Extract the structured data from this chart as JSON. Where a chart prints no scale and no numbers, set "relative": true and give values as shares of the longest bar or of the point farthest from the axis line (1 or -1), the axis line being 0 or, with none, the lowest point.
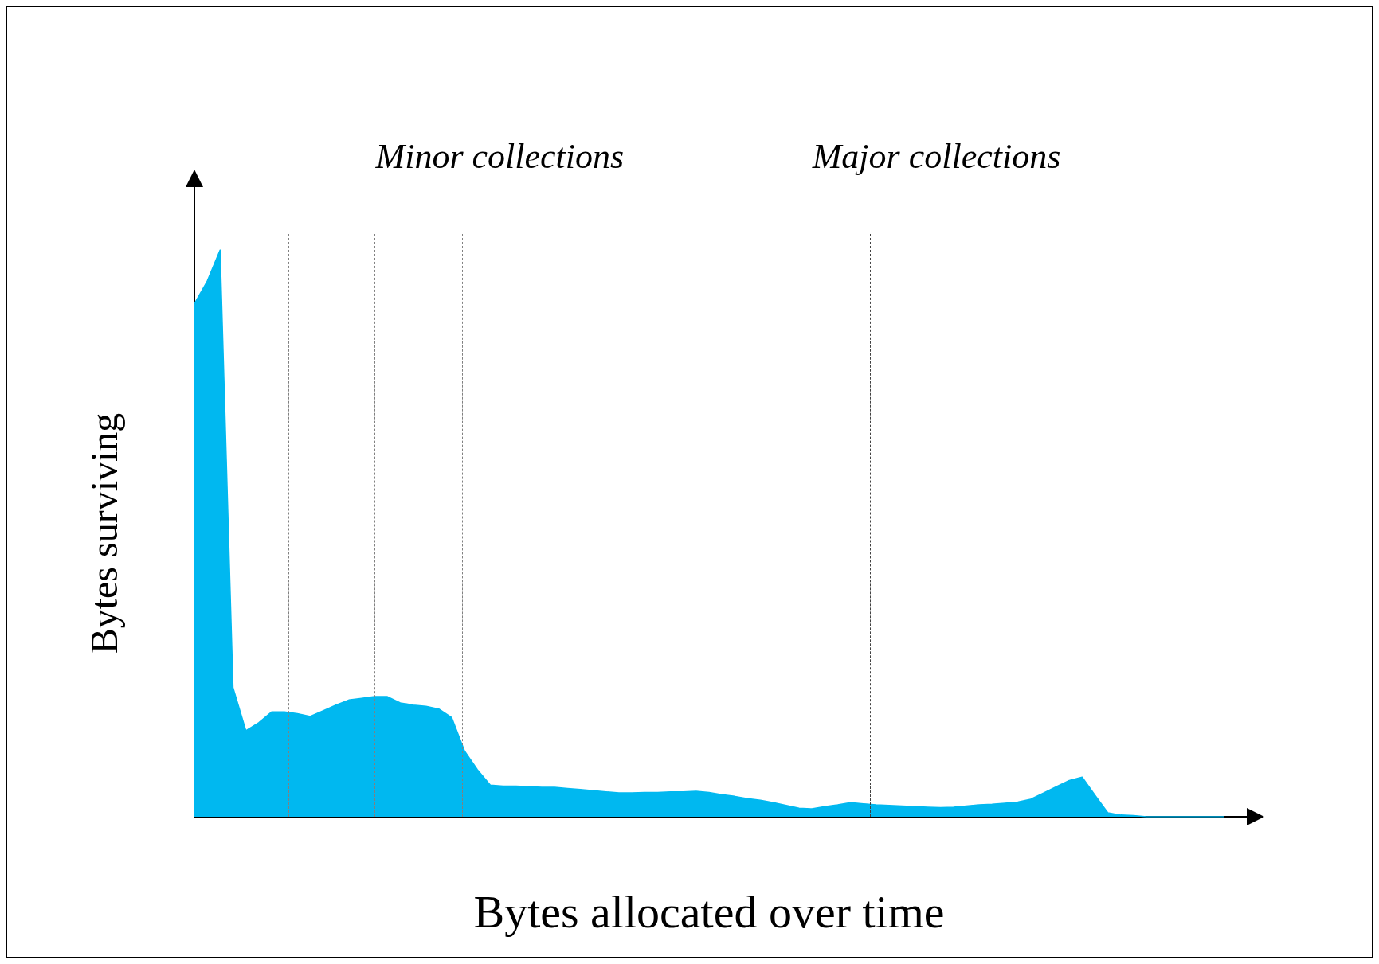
{
  "chart_data": {
    "type": "area",
    "relative": true,
    "xlabel": "Bytes allocated over time",
    "ylabel": "Bytes surviving",
    "color": "#00b8f0",
    "categories": [
      null,
      null,
      null,
      null,
      null,
      null,
      null,
      null,
      null,
      null,
      null,
      null,
      null,
      null,
      null,
      null,
      null,
      null,
      null,
      null,
      null,
      null,
      null,
      null,
      null,
      null,
      null,
      null,
      null,
      null,
      null,
      null,
      null,
      null,
      null,
      null,
      null,
      null,
      null,
      null,
      null,
      null,
      null,
      null,
      null,
      null,
      null,
      null,
      null,
      null,
      null,
      null,
      null,
      null,
      null,
      null,
      null,
      null,
      null,
      null,
      null,
      null,
      null,
      null,
      null,
      null,
      null,
      null,
      null,
      null,
      null,
      null,
      null,
      null,
      null,
      null,
      null,
      null,
      null,
      null,
      null
    ],
    "values": [
      0.905,
      0.945,
      1,
      0.228,
      0.152,
      0.166,
      0.185,
      0.185,
      0.182,
      0.177,
      0.187,
      0.197,
      0.206,
      0.209,
      0.212,
      0.212,
      0.201,
      0.197,
      0.195,
      0.19,
      0.175,
      0.116,
      0.083,
      0.056,
      0.054,
      0.054,
      0.053,
      0.052,
      0.052,
      0.05,
      0.048,
      0.046,
      0.044,
      0.042,
      0.042,
      0.043,
      0.043,
      0.044,
      0.044,
      0.045,
      0.043,
      0.039,
      0.036,
      0.032,
      0.029,
      0.025,
      0.02,
      0.015,
      0.014,
      0.018,
      0.021,
      0.025,
      0.023,
      0.021,
      0.02,
      0.019,
      0.018,
      0.017,
      0.016,
      0.017,
      0.019,
      0.021,
      0.022,
      0.024,
      0.026,
      0.031,
      0.042,
      0.053,
      0.064,
      0.07,
      0.038,
      0.007,
      0.003,
      0.002,
      0,
      0,
      0,
      0,
      0,
      0,
      0
    ],
    "annotations": [
      "Minor collections",
      "Major collections"
    ]
  }
}
